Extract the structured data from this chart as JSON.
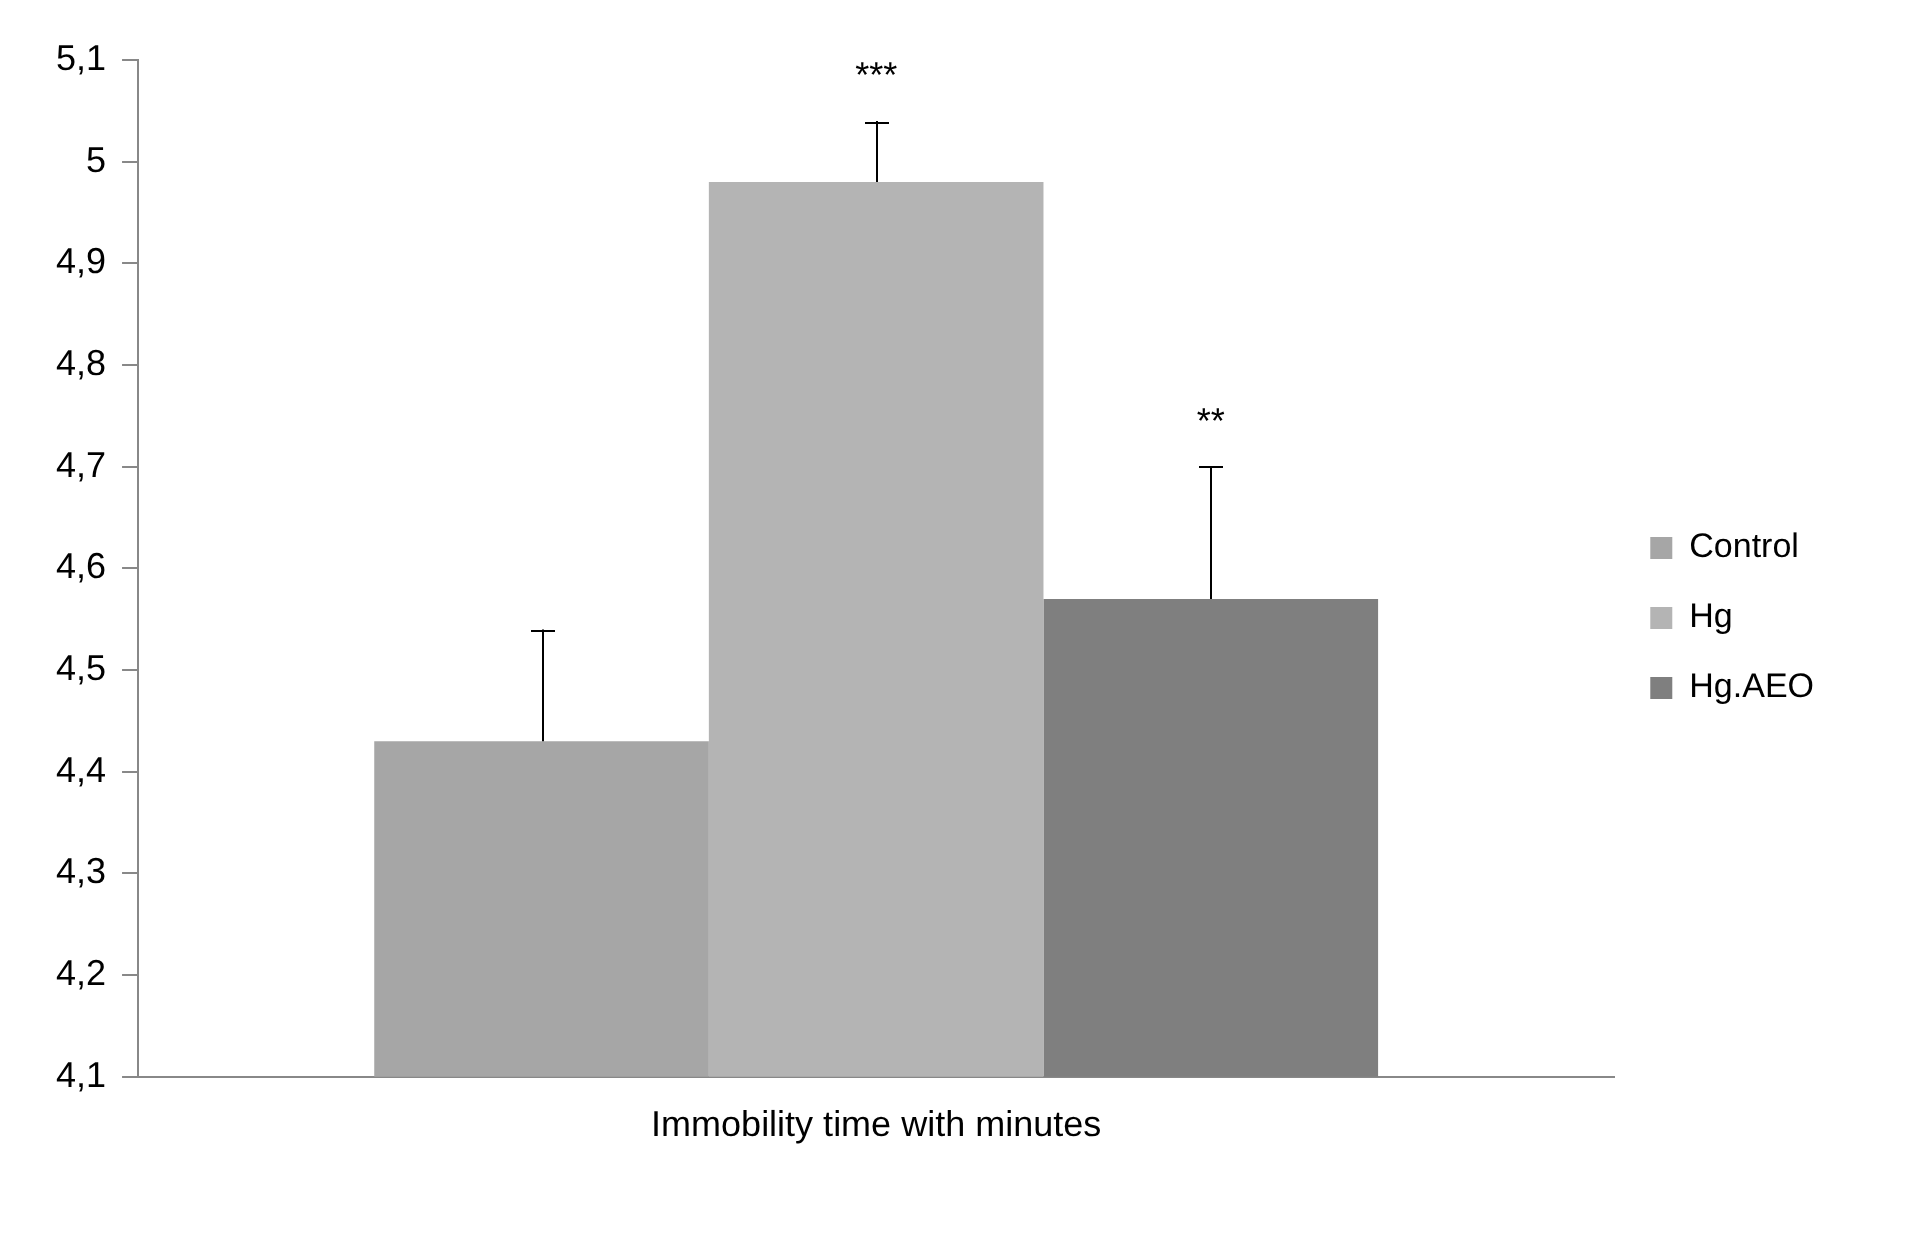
{
  "chart_data": {
    "type": "bar",
    "categories": [
      "Immobility time with minutes"
    ],
    "series": [
      {
        "name": "Control",
        "color": "#a6a6a6",
        "values": [
          4.43
        ],
        "errors": [
          [
            4.43,
            4.54
          ]
        ]
      },
      {
        "name": "Hg",
        "color": "#b4b4b4",
        "values": [
          4.98
        ],
        "errors": [
          [
            4.98,
            5.04
          ]
        ]
      },
      {
        "name": "Hg.AEO",
        "color": "#7f7f7f",
        "values": [
          4.57
        ],
        "errors": [
          [
            4.57,
            4.7
          ]
        ]
      }
    ],
    "ylim": [
      4.1,
      5.1
    ],
    "yticks": [
      {
        "value": 4.1,
        "label": "4,1"
      },
      {
        "value": 4.2,
        "label": "4,2"
      },
      {
        "value": 4.3,
        "label": "4,3"
      },
      {
        "value": 4.4,
        "label": "4,4"
      },
      {
        "value": 4.5,
        "label": "4,5"
      },
      {
        "value": 4.6,
        "label": "4,6"
      },
      {
        "value": 4.7,
        "label": "4,7"
      },
      {
        "value": 4.8,
        "label": "4,8"
      },
      {
        "value": 4.9,
        "label": "4,9"
      },
      {
        "value": 5,
        "label": "5"
      },
      {
        "value": 5.1,
        "label": "5,1"
      }
    ],
    "annotations": [
      "***",
      "**"
    ],
    "grid": false,
    "legend": "right"
  }
}
